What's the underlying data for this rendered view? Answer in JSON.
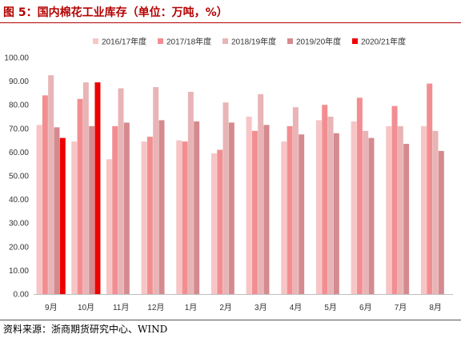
{
  "figure": {
    "title": "图 5：国内棉花工业库存（单位：万吨，%）",
    "source": "资料来源：浙商期货研究中心、WIND"
  },
  "colors": {
    "title": "#b30000",
    "series": [
      "#f7c5c6",
      "#f28e91",
      "#e8b4b6",
      "#d48a8f",
      "#ee0000"
    ]
  },
  "chart_data": {
    "type": "bar",
    "categories": [
      "9月",
      "10月",
      "11月",
      "12月",
      "1月",
      "2月",
      "3月",
      "4月",
      "5月",
      "6月",
      "7月",
      "8月"
    ],
    "ylim": [
      0,
      100
    ],
    "yticks": [
      "0.00",
      "10.00",
      "20.00",
      "30.00",
      "40.00",
      "50.00",
      "60.00",
      "70.00",
      "80.00",
      "90.00",
      "100.00"
    ],
    "grid": false,
    "legend_position": "top",
    "series": [
      {
        "name": "2016/17年度",
        "values": [
          71.5,
          64.5,
          57,
          64.5,
          65,
          59.5,
          75,
          64.5,
          73.5,
          73,
          71,
          71
        ]
      },
      {
        "name": "2017/18年度",
        "values": [
          84,
          82.5,
          71,
          66.5,
          64.5,
          61,
          69,
          71,
          80,
          83,
          79.5,
          89
        ]
      },
      {
        "name": "2018/19年度",
        "values": [
          92.5,
          89.5,
          87,
          87.5,
          85.5,
          81,
          84.5,
          79,
          75,
          69,
          71,
          69
        ]
      },
      {
        "name": "2019/20年度",
        "values": [
          70.5,
          71,
          72.5,
          73.5,
          73,
          72.5,
          71.5,
          67.5,
          68,
          66,
          63.5,
          60.5
        ]
      },
      {
        "name": "2020/21年度",
        "values": [
          66,
          89.5,
          null,
          null,
          null,
          null,
          null,
          null,
          null,
          null,
          null,
          null
        ]
      }
    ]
  }
}
